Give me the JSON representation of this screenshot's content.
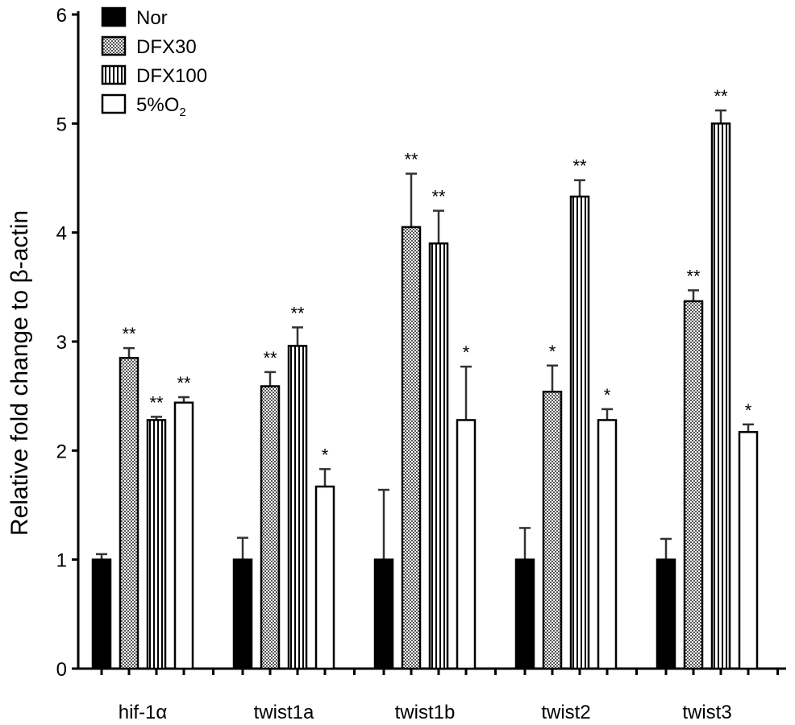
{
  "chart_data": {
    "type": "bar",
    "ylabel": "Relative fold change to β-actin",
    "ylim": [
      0,
      6
    ],
    "yticks": [
      "0",
      "1",
      "2",
      "3",
      "4",
      "5",
      "6"
    ],
    "categories": [
      "hif-1α",
      "twist1a",
      "twist1b",
      "twist2",
      "twist3"
    ],
    "legend_position": "top-left",
    "series": [
      {
        "name": "Nor",
        "fill": "solid",
        "values": [
          1.0,
          1.0,
          1.0,
          1.0,
          1.0
        ],
        "errors": [
          0.05,
          0.2,
          0.64,
          0.29,
          0.19
        ],
        "significance": [
          "",
          "",
          "",
          "",
          ""
        ]
      },
      {
        "name": "DFX30",
        "fill": "checker",
        "values": [
          2.85,
          2.59,
          4.05,
          2.54,
          3.37
        ],
        "errors": [
          0.09,
          0.13,
          0.49,
          0.24,
          0.1
        ],
        "significance": [
          "**",
          "**",
          "**",
          "*",
          "**"
        ]
      },
      {
        "name": "DFX100",
        "fill": "vertical-lines",
        "values": [
          2.28,
          2.96,
          3.9,
          4.33,
          5.0
        ],
        "errors": [
          0.03,
          0.17,
          0.3,
          0.15,
          0.12
        ],
        "significance": [
          "**",
          "**",
          "**",
          "**",
          "**"
        ]
      },
      {
        "name": "5%O",
        "name_subscript": "2",
        "fill": "white",
        "values": [
          2.44,
          1.67,
          2.28,
          2.28,
          2.17
        ],
        "errors": [
          0.05,
          0.16,
          0.49,
          0.1,
          0.07
        ],
        "significance": [
          "**",
          "*",
          "*",
          "*",
          "*"
        ]
      }
    ]
  }
}
